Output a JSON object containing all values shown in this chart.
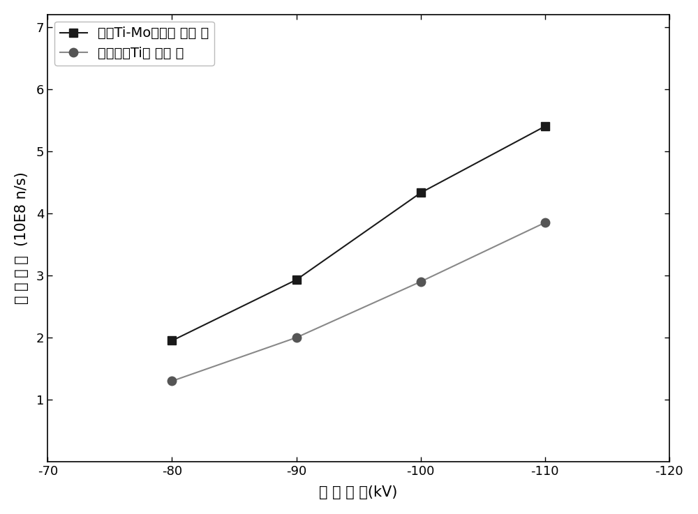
{
  "series1_label": "钼基Ti-Mo合金靶 中子 管",
  "series2_label": "陶瓷基纯Ti靶 中子 管",
  "x_values": [
    -80,
    -90,
    -100,
    -110
  ],
  "series1_y": [
    1.95,
    2.93,
    4.33,
    5.4
  ],
  "series2_y": [
    1.3,
    2.0,
    2.9,
    3.85
  ],
  "series1_color": "#1a1a1a",
  "series2_color": "#555555",
  "series1_line_color": "#1a1a1a",
  "series2_line_color": "#888888",
  "series1_marker": "s",
  "series2_marker": "o",
  "xlabel": "靶 极 电 压(kV)",
  "ylabel": "中 子 产 额  (10E8 n/s)",
  "xlim_left": -70,
  "xlim_right": -120,
  "ylim_bottom": 0,
  "ylim_top": 7.2,
  "yticks": [
    1,
    2,
    3,
    4,
    5,
    6,
    7
  ],
  "xticks": [
    -70,
    -80,
    -90,
    -100,
    -110,
    -120
  ],
  "xtick_labels": [
    "-70",
    "-80",
    "-90",
    "-100",
    "-110",
    "-120"
  ],
  "marker_size": 9,
  "line_width": 1.5,
  "legend_fontsize": 14,
  "axis_label_fontsize": 15,
  "tick_fontsize": 13,
  "background_color": "#ffffff"
}
